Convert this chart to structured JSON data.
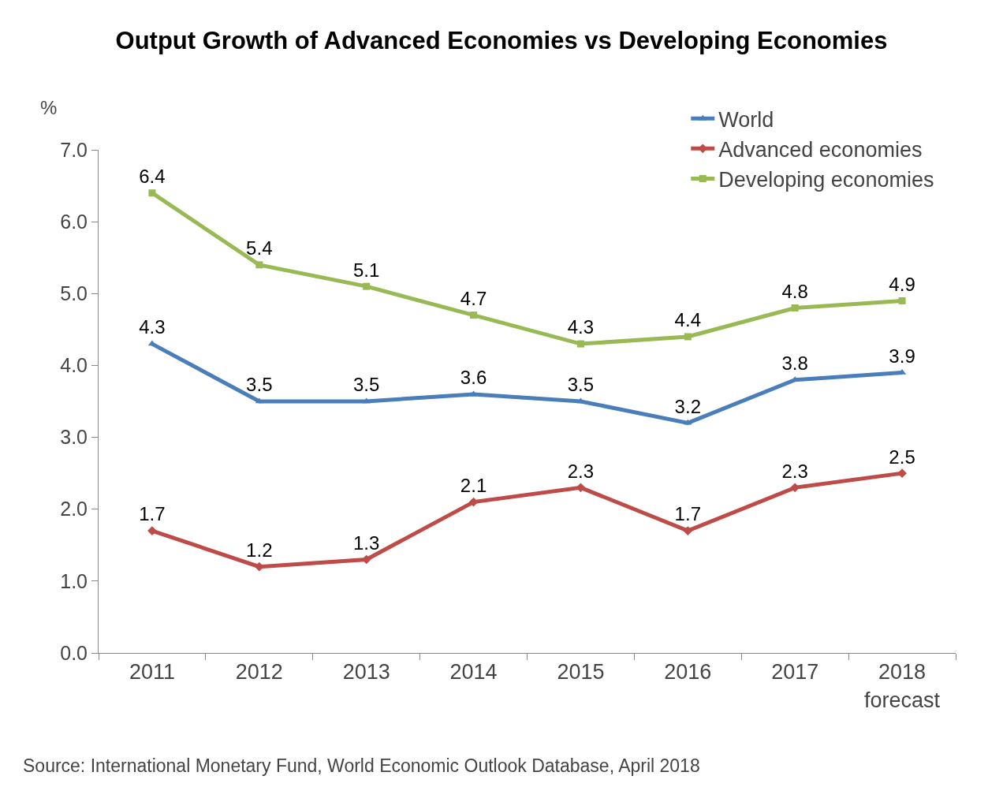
{
  "chart_data": {
    "type": "line",
    "title": "Output Growth of Advanced Economies vs Developing Economies",
    "ylabel": "%",
    "categories": [
      "2011",
      "2012",
      "2013",
      "2014",
      "2015",
      "2016",
      "2017",
      "2018\nforecast"
    ],
    "series": [
      {
        "name": "World",
        "color": "#4a7ebb",
        "marker": "triangle",
        "values": [
          4.3,
          3.5,
          3.5,
          3.6,
          3.5,
          3.2,
          3.8,
          3.9
        ]
      },
      {
        "name": "Advanced economies",
        "color": "#be4b48",
        "marker": "diamond",
        "values": [
          1.7,
          1.2,
          1.3,
          2.1,
          2.3,
          1.7,
          2.3,
          2.5
        ]
      },
      {
        "name": "Developing economies",
        "color": "#98b954",
        "marker": "square",
        "values": [
          6.4,
          5.4,
          5.1,
          4.7,
          4.3,
          4.4,
          4.8,
          4.9
        ]
      }
    ],
    "ylim": [
      0,
      7
    ],
    "yticks": [
      {
        "value": 0,
        "label": "0.0"
      },
      {
        "value": 1,
        "label": "1.0"
      },
      {
        "value": 2,
        "label": "2.0"
      },
      {
        "value": 3,
        "label": "3.0"
      },
      {
        "value": 4,
        "label": "4.0"
      },
      {
        "value": 5,
        "label": "5.0"
      },
      {
        "value": 6,
        "label": "6.0"
      },
      {
        "value": 7,
        "label": "7.0"
      }
    ],
    "data_labels": true,
    "grid": false,
    "legend": "top right",
    "line_style": "solid",
    "annotations": [
      "Source: International Monetary Fund, World Economic Outlook Database, April 2018"
    ]
  }
}
